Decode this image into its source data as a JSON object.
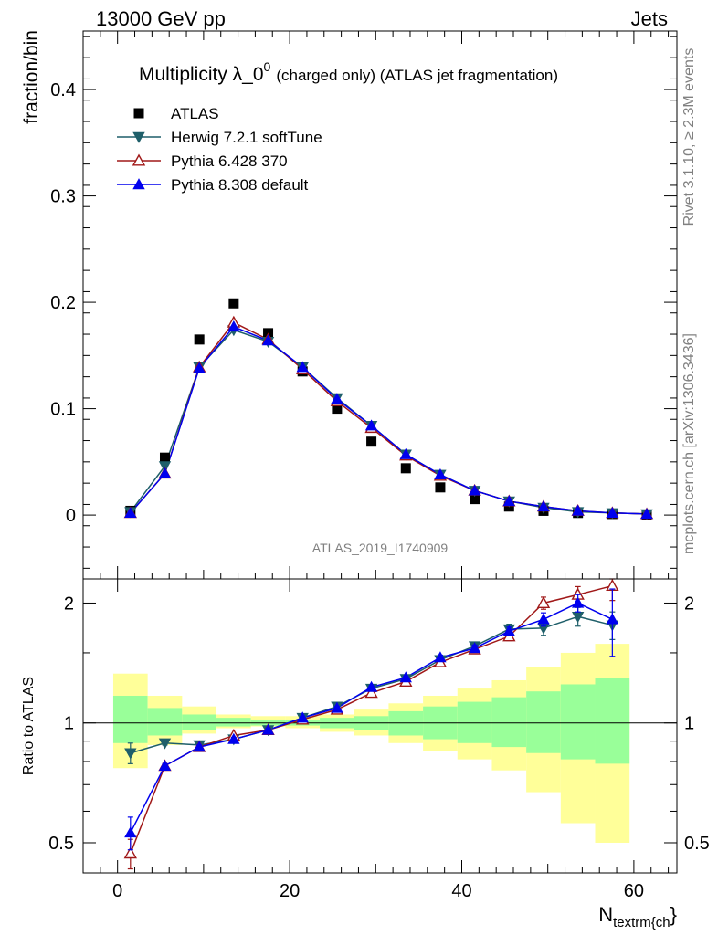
{
  "header": {
    "left": "13000 GeV pp",
    "right": "Jets",
    "title_main": "Multiplicity λ_0",
    "title_sup": "0",
    "title_tail": "(charged only) (ATLAS jet fragmentation)",
    "watermark": "ATLAS_2019_I1740909",
    "side_top": "Rivet 3.1.10, ≥ 2.3M events",
    "side_bottom": "mcplots.cern.ch [arXiv:1306.3436]"
  },
  "chart_data": [
    {
      "type": "scatter",
      "panel": "main",
      "ylabel": "fraction/bin",
      "xlim": [
        -4,
        65
      ],
      "ylim": [
        -0.06,
        0.455
      ],
      "yticks": [
        0,
        0.1,
        0.2,
        0.3,
        0.4
      ],
      "ytick_labels": [
        "0",
        "0.1",
        "0.2",
        "0.3",
        "0.4"
      ],
      "x": [
        1.5,
        5.5,
        9.5,
        13.5,
        17.5,
        21.5,
        25.5,
        29.5,
        33.5,
        37.5,
        41.5,
        45.5,
        49.5,
        53.5,
        57.5,
        61.5
      ],
      "series": [
        {
          "name": "ATLAS",
          "color": "#000000",
          "marker": "square",
          "values": [
            0.004,
            0.054,
            0.165,
            0.199,
            0.171,
            0.135,
            0.1,
            0.069,
            0.044,
            0.026,
            0.015,
            0.008,
            0.004,
            0.002,
            0.001,
            0.0005
          ]
        },
        {
          "name": "Herwig 7.2.1 softTune",
          "color": "#1f5f6a",
          "marker": "triangle-down",
          "values": [
            0.003,
            0.046,
            0.139,
            0.174,
            0.163,
            0.139,
            0.11,
            0.084,
            0.057,
            0.038,
            0.023,
            0.013,
            0.007,
            0.003,
            0.002,
            0.001
          ]
        },
        {
          "name": "Pythia 6.428 370",
          "color": "#a01818",
          "marker": "triangle-open",
          "values": [
            0.002,
            0.039,
            0.139,
            0.181,
            0.165,
            0.137,
            0.107,
            0.082,
            0.056,
            0.037,
            0.023,
            0.013,
            0.008,
            0.004,
            0.002,
            0.001
          ]
        },
        {
          "name": "Pythia 8.308 default",
          "color": "#0000ee",
          "marker": "triangle-up",
          "values": [
            0.002,
            0.039,
            0.138,
            0.177,
            0.164,
            0.139,
            0.109,
            0.084,
            0.057,
            0.038,
            0.023,
            0.013,
            0.008,
            0.004,
            0.002,
            0.001
          ]
        }
      ],
      "legend_position": "top-left"
    },
    {
      "type": "line",
      "panel": "ratio",
      "xlabel": "N",
      "xlabel_sub": "textrm{ch",
      "xlabel_tail": "}",
      "ylabel": "Ratio to ATLAS",
      "xlim": [
        -4,
        65
      ],
      "ylim": [
        0.42,
        2.3
      ],
      "y_scale": "log",
      "yticks": [
        0.5,
        1,
        2
      ],
      "ytick_labels": [
        "0.5",
        "1",
        "2"
      ],
      "xticks": [
        0,
        20,
        40,
        60
      ],
      "xtick_labels": [
        "0",
        "20",
        "40",
        "60"
      ],
      "bins": [
        [
          -0.5,
          3.5
        ],
        [
          3.5,
          7.5
        ],
        [
          7.5,
          11.5
        ],
        [
          11.5,
          15.5
        ],
        [
          15.5,
          19.5
        ],
        [
          19.5,
          23.5
        ],
        [
          23.5,
          27.5
        ],
        [
          27.5,
          31.5
        ],
        [
          31.5,
          35.5
        ],
        [
          35.5,
          39.5
        ],
        [
          39.5,
          43.5
        ],
        [
          43.5,
          47.5
        ],
        [
          47.5,
          51.5
        ],
        [
          51.5,
          55.5
        ],
        [
          55.5,
          59.5
        ]
      ],
      "band_green": [
        [
          0.89,
          1.17
        ],
        [
          0.93,
          1.09
        ],
        [
          0.96,
          1.05
        ],
        [
          0.98,
          1.03
        ],
        [
          0.985,
          1.02
        ],
        [
          0.985,
          1.02
        ],
        [
          0.97,
          1.03
        ],
        [
          0.96,
          1.04
        ],
        [
          0.93,
          1.07
        ],
        [
          0.91,
          1.1
        ],
        [
          0.89,
          1.13
        ],
        [
          0.87,
          1.16
        ],
        [
          0.84,
          1.2
        ],
        [
          0.81,
          1.25
        ],
        [
          0.79,
          1.3
        ]
      ],
      "band_yellow": [
        [
          0.77,
          1.33
        ],
        [
          0.88,
          1.17
        ],
        [
          0.94,
          1.1
        ],
        [
          0.97,
          1.05
        ],
        [
          0.98,
          1.04
        ],
        [
          0.97,
          1.04
        ],
        [
          0.95,
          1.05
        ],
        [
          0.93,
          1.08
        ],
        [
          0.89,
          1.12
        ],
        [
          0.85,
          1.17
        ],
        [
          0.81,
          1.22
        ],
        [
          0.76,
          1.28
        ],
        [
          0.67,
          1.38
        ],
        [
          0.56,
          1.5
        ],
        [
          0.5,
          1.58
        ]
      ],
      "x": [
        1.5,
        5.5,
        9.5,
        13.5,
        17.5,
        21.5,
        25.5,
        29.5,
        33.5,
        37.5,
        41.5,
        45.5,
        49.5,
        53.5,
        57.5
      ],
      "series": [
        {
          "name": "Herwig 7.2.1 softTune",
          "color": "#1f5f6a",
          "marker": "triangle-down",
          "values": [
            0.84,
            0.89,
            0.88,
            0.91,
            0.96,
            1.03,
            1.1,
            1.22,
            1.29,
            1.44,
            1.56,
            1.72,
            1.73,
            1.85,
            1.76
          ],
          "errors": [
            0.05,
            0.01,
            0.01,
            0.01,
            0.01,
            0.01,
            0.01,
            0.01,
            0.01,
            0.02,
            0.03,
            0.05,
            0.07,
            0.1,
            0.14
          ]
        },
        {
          "name": "Pythia 6.428 370",
          "color": "#a01818",
          "marker": "triangle-open",
          "values": [
            0.47,
            0.78,
            0.87,
            0.93,
            0.96,
            1.02,
            1.08,
            1.19,
            1.27,
            1.42,
            1.53,
            1.65,
            2.0,
            2.1,
            2.21
          ],
          "errors": [
            0.04,
            0.01,
            0.01,
            0.01,
            0.01,
            0.01,
            0.01,
            0.01,
            0.01,
            0.02,
            0.03,
            0.04,
            0.07,
            0.1,
            0.18
          ]
        },
        {
          "name": "Pythia 8.308 default",
          "color": "#0000ee",
          "marker": "triangle-up",
          "values": [
            0.53,
            0.78,
            0.87,
            0.91,
            0.96,
            1.03,
            1.09,
            1.23,
            1.3,
            1.46,
            1.54,
            1.7,
            1.82,
            2.0,
            1.82
          ],
          "errors": [
            0.05,
            0.01,
            0.01,
            0.01,
            0.01,
            0.01,
            0.01,
            0.01,
            0.01,
            0.02,
            0.03,
            0.04,
            0.07,
            0.1,
            0.35
          ]
        }
      ]
    }
  ]
}
